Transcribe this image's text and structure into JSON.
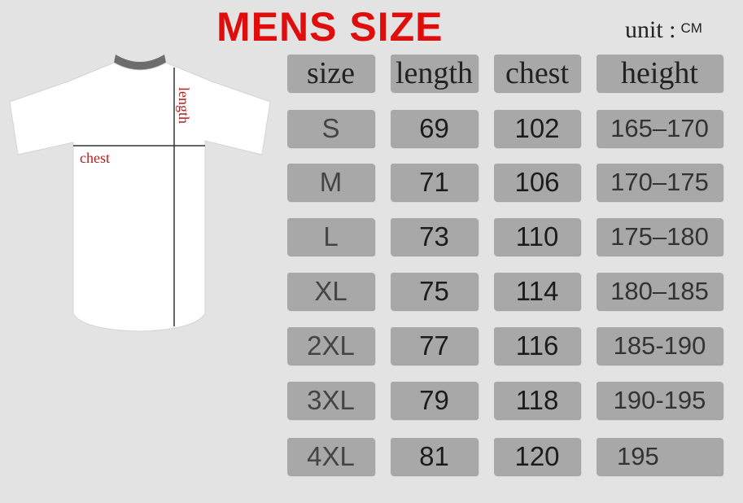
{
  "title": "MENS SIZE",
  "unit_label": "unit",
  "unit_value": "CM",
  "diagram": {
    "length_label": "length",
    "chest_label": "chest"
  },
  "colors": {
    "title": "#e00d0d",
    "cell": "#a8a8a8",
    "background": "#e3e3e3"
  },
  "headers": [
    "size",
    "length",
    "chest",
    "height"
  ],
  "rows": [
    [
      "S",
      "69",
      "102",
      "165–170"
    ],
    [
      "M",
      "71",
      "106",
      "170–175"
    ],
    [
      "L",
      "73",
      "110",
      "175–180"
    ],
    [
      "XL",
      "75",
      "114",
      "180–185"
    ],
    [
      "2XL",
      "77",
      "116",
      "185-190"
    ],
    [
      "3XL",
      "79",
      "118",
      "190-195"
    ],
    [
      "4XL",
      "81",
      "120",
      "195"
    ]
  ]
}
